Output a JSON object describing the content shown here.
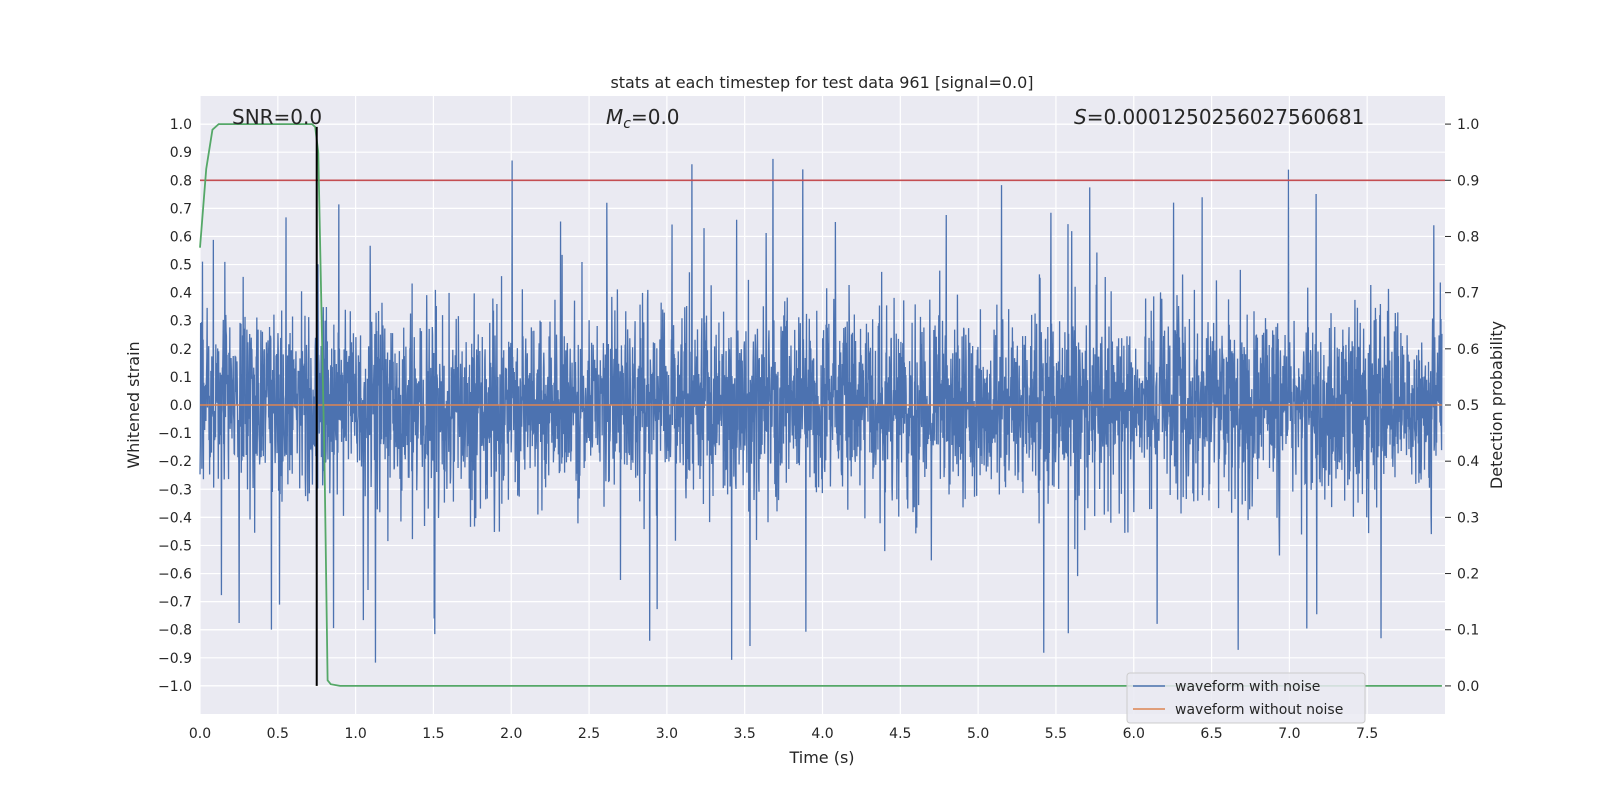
{
  "chart_data": {
    "type": "line",
    "title": "stats at each timestep for test data 961 [signal=0.0]",
    "xlabel": "Time (s)",
    "ylabel": "Whitened strain",
    "y2label": "Detection probability",
    "xlim": [
      0.0,
      8.0
    ],
    "ylim": [
      -1.1,
      1.1
    ],
    "y2lim": [
      -0.05,
      1.05
    ],
    "x_ticks": [
      0.0,
      0.5,
      1.0,
      1.5,
      2.0,
      2.5,
      3.0,
      3.5,
      4.0,
      4.5,
      5.0,
      5.5,
      6.0,
      6.5,
      7.0,
      7.5
    ],
    "x_tick_labels": [
      "0.0",
      "0.5",
      "1.0",
      "1.5",
      "2.0",
      "2.5",
      "3.0",
      "3.5",
      "4.0",
      "4.5",
      "5.0",
      "5.5",
      "6.0",
      "6.5",
      "7.0",
      "7.5"
    ],
    "y_ticks": [
      -1.0,
      -0.9,
      -0.8,
      -0.7,
      -0.6,
      -0.5,
      -0.4,
      -0.3,
      -0.2,
      -0.1,
      0.0,
      0.1,
      0.2,
      0.3,
      0.4,
      0.5,
      0.6,
      0.7,
      0.8,
      0.9,
      1.0
    ],
    "y_tick_labels": [
      "−1.0",
      "−0.9",
      "−0.8",
      "−0.7",
      "−0.6",
      "−0.5",
      "−0.4",
      "−0.3",
      "−0.2",
      "−0.1",
      "0.0",
      "0.1",
      "0.2",
      "0.3",
      "0.4",
      "0.5",
      "0.6",
      "0.7",
      "0.8",
      "0.9",
      "1.0"
    ],
    "y2_ticks": [
      0.0,
      0.1,
      0.2,
      0.3,
      0.4,
      0.5,
      0.6,
      0.7,
      0.8,
      0.9,
      1.0
    ],
    "y2_tick_labels": [
      "0.0",
      "0.1",
      "0.2",
      "0.3",
      "0.4",
      "0.5",
      "0.6",
      "0.7",
      "0.8",
      "0.9",
      "1.0"
    ],
    "annotations": {
      "snr": "SNR=0.0",
      "mc_symbol": "M",
      "mc_sub": "c",
      "mc_value": "=0.0",
      "s_symbol": "S",
      "s_value": "=0.0001250256027560681"
    },
    "series": [
      {
        "name": "waveform with noise",
        "color": "#4c72b0",
        "description": "noise, approx +-0.4 typical, peaks to +-0.9",
        "amplitude_typical": 0.4,
        "amplitude_max": 0.92,
        "seed": 961
      },
      {
        "name": "waveform without noise",
        "color": "#dd8452",
        "y_constant": 0.0
      },
      {
        "name": "detection probability",
        "axis": "right",
        "color": "#55a868",
        "x": [
          0.0,
          0.04,
          0.08,
          0.12,
          0.2,
          0.4,
          0.6,
          0.72,
          0.74,
          0.76,
          0.8,
          0.82,
          0.84,
          0.9,
          1.0,
          7.98
        ],
        "y": [
          0.78,
          0.92,
          0.99,
          1.0,
          1.0,
          1.0,
          1.0,
          1.0,
          0.995,
          0.95,
          0.4,
          0.01,
          0.003,
          0.0,
          0.0,
          0.0
        ]
      }
    ],
    "threshold": {
      "y2": 0.9,
      "color": "#c44e52"
    },
    "vline": {
      "x": 0.75,
      "color": "#000000"
    },
    "legend": {
      "position": "lower-right",
      "entries": [
        "waveform with noise",
        "waveform without noise"
      ]
    }
  }
}
